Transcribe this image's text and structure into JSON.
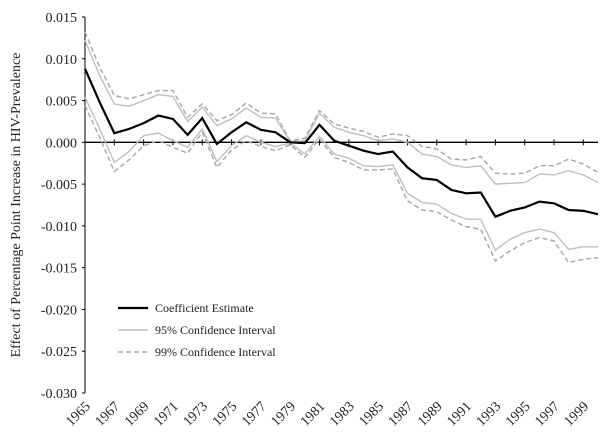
{
  "chart_data": {
    "type": "line",
    "y_label": "Effect of Percentage Point Increase in HIV-Prevalence",
    "x": [
      1965,
      1966,
      1967,
      1968,
      1969,
      1970,
      1971,
      1972,
      1973,
      1974,
      1975,
      1976,
      1977,
      1978,
      1979,
      1980,
      1981,
      1982,
      1983,
      1984,
      1985,
      1986,
      1987,
      1988,
      1989,
      1990,
      1991,
      1992,
      1993,
      1994,
      1995,
      1996,
      1997,
      1998,
      1999,
      2000
    ],
    "xlim": [
      1965,
      2000
    ],
    "xticks": [
      1965,
      1967,
      1969,
      1971,
      1973,
      1975,
      1977,
      1979,
      1981,
      1983,
      1985,
      1987,
      1989,
      1991,
      1993,
      1995,
      1997,
      1999
    ],
    "ylim": [
      -0.03,
      0.015
    ],
    "yticks": [
      {
        "value": 0.015,
        "label": "0.015"
      },
      {
        "value": 0.01,
        "label": "0.010"
      },
      {
        "value": 0.005,
        "label": "0.005"
      },
      {
        "value": 0,
        "label": "0.000"
      },
      {
        "value": -0.005,
        "label": "-0.005"
      },
      {
        "value": -0.01,
        "label": "-0.010"
      },
      {
        "value": -0.015,
        "label": "-0.015"
      },
      {
        "value": -0.02,
        "label": "-0.020"
      },
      {
        "value": -0.025,
        "label": "-0.025"
      },
      {
        "value": -0.03,
        "label": "-0.030"
      }
    ],
    "series": [
      {
        "name": "Coefficient Estimate",
        "color": "#000000",
        "dash": "solid",
        "values": [
          0.0088,
          0.0048,
          0.0011,
          0.0016,
          0.0023,
          0.0032,
          0.0028,
          0.0009,
          0.0029,
          -0.0002,
          0.0012,
          0.0024,
          0.0015,
          0.0012,
          0.0,
          -0.0001,
          0.0021,
          0.0002,
          -0.0004,
          -0.001,
          -0.0014,
          -0.0011,
          -0.003,
          -0.0043,
          -0.0045,
          -0.0057,
          -0.0061,
          -0.006,
          -0.0089,
          -0.0082,
          -0.0078,
          -0.0071,
          -0.0073,
          -0.0081,
          -0.0082,
          -0.0086
        ]
      },
      {
        "name": "95% Confidence Interval",
        "color": "#bfbfbf",
        "dash": "solid",
        "upper": [
          0.0122,
          0.008,
          0.0046,
          0.0043,
          0.005,
          0.0057,
          0.0055,
          0.0025,
          0.0042,
          0.002,
          0.0028,
          0.0041,
          0.003,
          0.0029,
          0.0001,
          0.0002,
          0.0035,
          0.0018,
          0.0012,
          0.0008,
          0.0002,
          0.0004,
          0.0,
          -0.0014,
          -0.0017,
          -0.0027,
          -0.003,
          -0.0028,
          -0.005,
          -0.0049,
          -0.0048,
          -0.0038,
          -0.0039,
          -0.0034,
          -0.0039,
          -0.0048
        ],
        "lower": [
          0.0054,
          0.0016,
          -0.0024,
          -0.0011,
          0.0008,
          0.0011,
          0.0002,
          -0.0006,
          0.0016,
          -0.0023,
          -0.0004,
          0.0008,
          0.0,
          -0.0005,
          -0.0001,
          -0.0014,
          0.0007,
          -0.0014,
          -0.0019,
          -0.0028,
          -0.0029,
          -0.0027,
          -0.0061,
          -0.0072,
          -0.0074,
          -0.0085,
          -0.0092,
          -0.0092,
          -0.0129,
          -0.0116,
          -0.0108,
          -0.0104,
          -0.0108,
          -0.0128,
          -0.0125,
          -0.0125
        ]
      },
      {
        "name": "99% Confidence Interval",
        "color": "#a6a6a6",
        "dash": "dashed",
        "upper": [
          0.0132,
          0.009,
          0.0056,
          0.0052,
          0.0057,
          0.0062,
          0.0062,
          0.003,
          0.0046,
          0.0026,
          0.0033,
          0.0047,
          0.0035,
          0.0034,
          0.0002,
          0.0005,
          0.0038,
          0.0022,
          0.0017,
          0.0013,
          0.0006,
          0.001,
          0.0008,
          -0.0005,
          -0.0008,
          -0.002,
          -0.0021,
          -0.0017,
          -0.0037,
          -0.0038,
          -0.0037,
          -0.0028,
          -0.0028,
          -0.002,
          -0.0026,
          -0.0036
        ],
        "lower": [
          0.0044,
          0.0006,
          -0.0035,
          -0.0021,
          -0.0004,
          0.0002,
          -0.0006,
          -0.0013,
          0.0012,
          -0.003,
          -0.0009,
          0.0002,
          -0.0005,
          -0.001,
          -0.0003,
          -0.0018,
          0.0004,
          -0.0018,
          -0.0024,
          -0.0033,
          -0.0033,
          -0.0032,
          -0.007,
          -0.0081,
          -0.0083,
          -0.0093,
          -0.0101,
          -0.0104,
          -0.0142,
          -0.013,
          -0.012,
          -0.0114,
          -0.0118,
          -0.0144,
          -0.014,
          -0.0138
        ]
      }
    ]
  }
}
